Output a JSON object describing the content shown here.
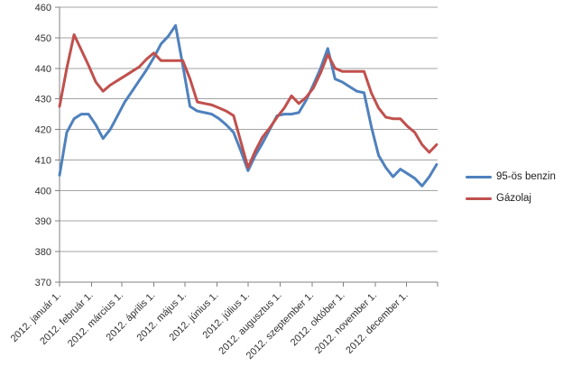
{
  "colors": {
    "background": "#FFFFFF",
    "gridline": "#A3A3A3",
    "axis": "#808080",
    "label": "#303030",
    "benzin_line": "#4F81BD",
    "gazolaj_line": "#C0504D"
  },
  "chart_data": {
    "type": "line",
    "title": "",
    "xlabel": "",
    "ylabel": "",
    "grid": true,
    "legend_position": "right",
    "sampling": "weekly",
    "y_axis": {
      "min": 370,
      "max": 460,
      "step": 10,
      "tick_labels": [
        "370",
        "380",
        "390",
        "400",
        "410",
        "420",
        "430",
        "440",
        "450",
        "460"
      ]
    },
    "x_axis": {
      "tick_labels": [
        "2012. január 1.",
        "2012. február 1.",
        "2012. március 1.",
        "2012. április 1.",
        "2012. május 1.",
        "2012. június 1.",
        "2012. július 1.",
        "2012. augusztus 1.",
        "2012. szeptember 1.",
        "2012. október 1.",
        "2012. november 1.",
        "2012. december 1."
      ],
      "month_start_days": [
        0,
        31,
        60,
        91,
        121,
        152,
        182,
        213,
        244,
        274,
        305,
        335
      ],
      "days_in_year": 365
    },
    "series": [
      {
        "name": "95-ös benzin",
        "key": "benzin-95",
        "color": "#4F81BD",
        "values": [
          405,
          419,
          423.5,
          425,
          425,
          421.5,
          417,
          420,
          424.5,
          429,
          432.5,
          436,
          439.5,
          443.5,
          448,
          450.5,
          454,
          441,
          427.5,
          426,
          425.5,
          425,
          423.5,
          421.5,
          419,
          413,
          406.5,
          411.5,
          415.5,
          420,
          424.5,
          425,
          425,
          425.5,
          429.5,
          434.5,
          440,
          446.5,
          436.5,
          435.5,
          434,
          432.5,
          432,
          421,
          411.5,
          407.5,
          404.5,
          407,
          405.5,
          404,
          401.5,
          404.5,
          408.5
        ]
      },
      {
        "name": "Gázolaj",
        "key": "gazolaj",
        "color": "#C0504D",
        "values": [
          427.5,
          440,
          451,
          446,
          441,
          435.5,
          432.5,
          434.5,
          436,
          437.5,
          439,
          440.5,
          443,
          445,
          442.5,
          442.5,
          442.5,
          442.5,
          436.5,
          429,
          428.5,
          428,
          427,
          426,
          424.5,
          416,
          407.5,
          413,
          417.5,
          420.5,
          424,
          427,
          431,
          428.5,
          430.5,
          433.5,
          438.5,
          444.5,
          440,
          439,
          439,
          439,
          439,
          432,
          427,
          424,
          423.5,
          423.5,
          421,
          419,
          415,
          412.5,
          415
        ]
      }
    ]
  }
}
